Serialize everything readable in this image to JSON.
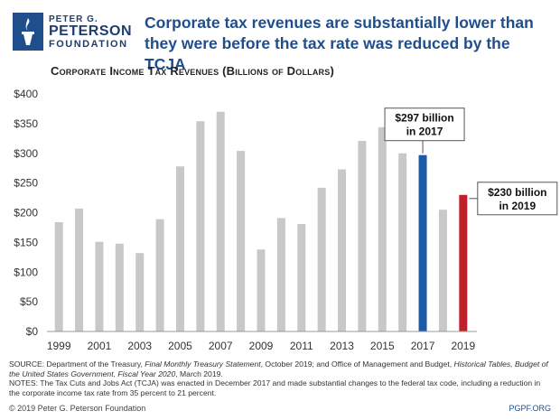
{
  "logo": {
    "line1": "PETER G.",
    "line2": "PETERSON",
    "line3": "FOUNDATION"
  },
  "headline": "Corporate tax revenues are substantially lower than they were before the tax rate was reduced by the TCJA",
  "footer": {
    "source_prefix": "SOURCE: Department of the Treasury, ",
    "source_italic1": "Final Monthly Treasury Statement",
    "source_mid": ", October 2019; and Office of Management and Budget, ",
    "source_italic2": "Historical Tables, Budget of the United States Government, Fiscal Year 2020",
    "source_suffix": ", March 2019.",
    "notes": "NOTES: The Tax Cuts and Jobs Act (TCJA) was enacted in December 2017 and made substantial changes to the federal tax code, including a reduction in the corporate income tax rate from 35 percent to 21 percent.",
    "copyright": "© 2019 Peter G. Peterson Foundation",
    "site": "PGPF.ORG"
  },
  "colors": {
    "bar_default": "#c8c8c8",
    "bar_2017": "#1f5aa6",
    "bar_2019": "#c0202a",
    "brand": "#1f4e8c"
  },
  "chart_data": {
    "type": "bar",
    "title": "Corporate Income Tax Revenues (Billions of Dollars)",
    "categories": [
      "1999",
      "2000",
      "2001",
      "2002",
      "2003",
      "2004",
      "2005",
      "2006",
      "2007",
      "2008",
      "2009",
      "2010",
      "2011",
      "2012",
      "2013",
      "2014",
      "2015",
      "2016",
      "2017",
      "2018",
      "2019"
    ],
    "values": [
      184,
      207,
      151,
      148,
      132,
      189,
      278,
      354,
      370,
      304,
      138,
      191,
      181,
      242,
      273,
      321,
      344,
      300,
      297,
      205,
      230
    ],
    "x_tick_labels": [
      "1999",
      "2001",
      "2003",
      "2005",
      "2007",
      "2009",
      "2011",
      "2013",
      "2015",
      "2017",
      "2019"
    ],
    "y_ticks": [
      0,
      50,
      100,
      150,
      200,
      250,
      300,
      350,
      400
    ],
    "y_tick_labels": [
      "$0",
      "$50",
      "$100",
      "$150",
      "$200",
      "$250",
      "$300",
      "$350",
      "$400"
    ],
    "ylim": [
      0,
      400
    ],
    "grid": false,
    "annotations": [
      {
        "category": "2017",
        "line1": "$297 billion",
        "line2": "in 2017"
      },
      {
        "category": "2019",
        "line1": "$230 billion",
        "line2": "in 2019"
      }
    ]
  }
}
